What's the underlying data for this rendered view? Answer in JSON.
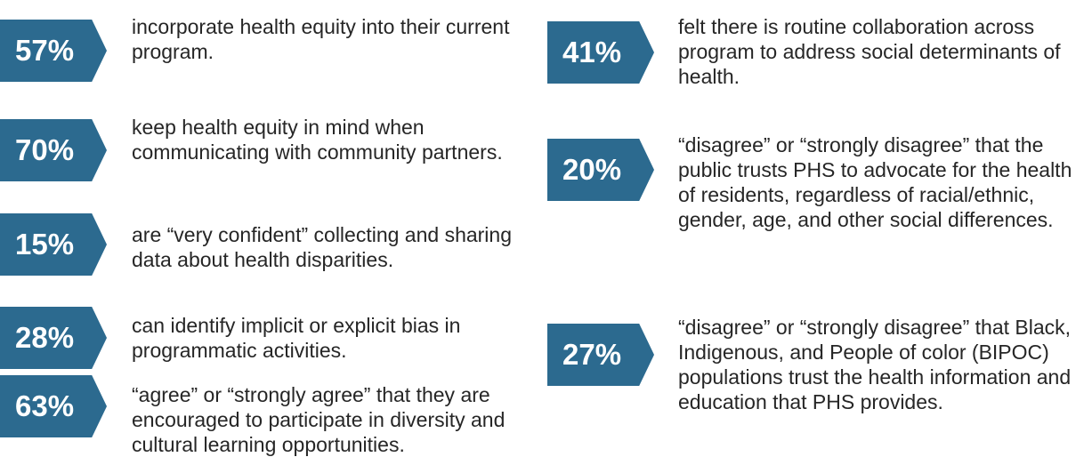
{
  "accent_color": "#2c6a8f",
  "left_stats": [
    {
      "value": "57%",
      "text": "incorporate health equity into their current program."
    },
    {
      "value": "70%",
      "text": "keep health equity in mind when communicating with community partners."
    },
    {
      "value": "15%",
      "text": "are “very confident” collecting and sharing data about health disparities."
    },
    {
      "value": "28%",
      "text": "can identify implicit or explicit bias in programmatic activities."
    },
    {
      "value": "63%",
      "text": "“agree” or “strongly agree” that they are encouraged to participate in diversity and cultural learning opportunities."
    }
  ],
  "right_stats": [
    {
      "value": "41%",
      "text": "felt there is routine collaboration across program to address social determinants of health."
    },
    {
      "value": "20%",
      "text": "“disagree” or “strongly disagree” that the public trusts PHS to advocate for the health of residents, regardless of racial/ethnic, gender, age, and other social differences."
    },
    {
      "value": "27%",
      "text": "“disagree” or “strongly disagree” that Black, Indigenous, and People of color (BIPOC) populations trust the health information and education that PHS provides."
    }
  ]
}
